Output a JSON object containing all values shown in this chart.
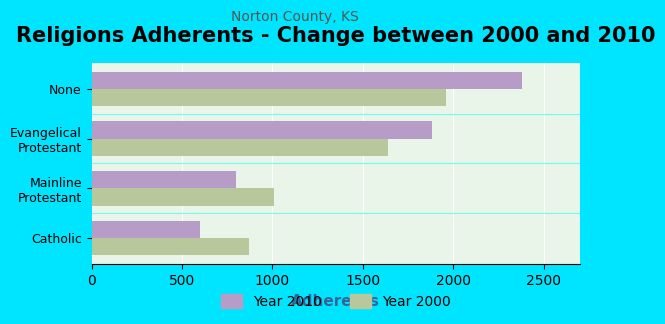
{
  "title": "Religions Adherents - Change between 2000 and 2010",
  "subtitle": "Norton County, KS",
  "categories": [
    "Catholic",
    "Mainline\nProtestant",
    "Evangelical\nProtestant",
    "None"
  ],
  "year2010": [
    600,
    800,
    1880,
    2380
  ],
  "year2000": [
    870,
    1010,
    1640,
    1960
  ],
  "color2010": "#b89cc8",
  "color2000": "#b8c89c",
  "xlabel": "Adherents",
  "xlim": [
    0,
    2700
  ],
  "xticks": [
    0,
    500,
    1000,
    1500,
    2000,
    2500
  ],
  "background_outer": "#00e5ff",
  "background_inner": "#e8f5e8",
  "title_fontsize": 15,
  "subtitle_fontsize": 10,
  "xlabel_fontsize": 11,
  "legend_fontsize": 10
}
